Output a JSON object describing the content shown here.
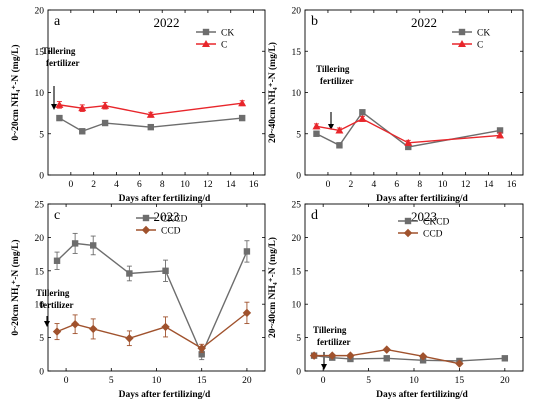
{
  "chart_data": [
    {
      "type": "line",
      "panel": "a",
      "title": "2022",
      "xlabel": "Days after fertilizing/d",
      "ylabel": "0~20cm NH₄⁺-N (mg/L)",
      "ylim": [
        0,
        20
      ],
      "yticks": [
        0,
        5,
        10,
        15,
        20
      ],
      "xlim": [
        -2,
        17
      ],
      "xticks": [
        0,
        2,
        4,
        6,
        8,
        10,
        12,
        14,
        16
      ],
      "annotation": "Tillering fertilizer",
      "legend_position": "top-right",
      "series": [
        {
          "name": "CK",
          "color": "#6d6d6d",
          "marker": "square",
          "x": [
            -1,
            1,
            3,
            7,
            15
          ],
          "y": [
            6.9,
            5.3,
            6.3,
            5.8,
            6.9
          ]
        },
        {
          "name": "C",
          "color": "#e8262b",
          "marker": "triangle",
          "x": [
            -1,
            1,
            3,
            7,
            15
          ],
          "y": [
            8.5,
            8.1,
            8.4,
            7.3,
            8.7
          ],
          "err": [
            0.4,
            0.4,
            0.4,
            0.3,
            0.3
          ]
        }
      ]
    },
    {
      "type": "line",
      "panel": "b",
      "title": "2022",
      "xlabel": "Days after fertilizing/d",
      "ylabel": "20~40cm NH₄⁺-N (mg/L)",
      "ylim": [
        0,
        20
      ],
      "yticks": [
        0,
        5,
        10,
        15,
        20
      ],
      "xlim": [
        -2,
        17
      ],
      "xticks": [
        0,
        2,
        4,
        6,
        8,
        10,
        12,
        14,
        16
      ],
      "annotation": "Tillering fertilizer",
      "legend_position": "top-right",
      "series": [
        {
          "name": "CK",
          "color": "#6d6d6d",
          "marker": "square",
          "x": [
            -1,
            1,
            3,
            7,
            15
          ],
          "y": [
            5.0,
            3.6,
            7.6,
            3.4,
            5.4
          ]
        },
        {
          "name": "C",
          "color": "#e8262b",
          "marker": "triangle",
          "x": [
            -1,
            1,
            3,
            7,
            15
          ],
          "y": [
            5.9,
            5.4,
            6.8,
            3.9,
            4.8
          ],
          "err": [
            0.3,
            0.3,
            0.3,
            0.3,
            0.3
          ]
        }
      ]
    },
    {
      "type": "line",
      "panel": "c",
      "title": "2023",
      "xlabel": "Days after fertilizing/d",
      "ylabel": "0~20cm NH₄⁺-N (mg/L)",
      "ylim": [
        0,
        25
      ],
      "yticks": [
        0,
        5,
        10,
        15,
        20,
        25
      ],
      "xlim": [
        -2,
        22
      ],
      "xticks": [
        0,
        5,
        10,
        15,
        20
      ],
      "annotation": "Tillering fertilizer",
      "legend_position": "top-center",
      "series": [
        {
          "name": "CKCD",
          "color": "#6d6d6d",
          "marker": "square",
          "x": [
            -1,
            1,
            3,
            7,
            11,
            15,
            20
          ],
          "y": [
            16.5,
            19.1,
            18.8,
            14.6,
            15.0,
            2.5,
            17.9
          ],
          "err": [
            1.3,
            1.5,
            1.4,
            1.1,
            1.6,
            0.8,
            1.6
          ]
        },
        {
          "name": "CCD",
          "color": "#a0522d",
          "marker": "diamond",
          "x": [
            -1,
            1,
            3,
            7,
            11,
            15,
            20
          ],
          "y": [
            5.9,
            7.0,
            6.3,
            4.9,
            6.6,
            3.4,
            8.7
          ],
          "err": [
            1.2,
            1.4,
            1.5,
            1.1,
            1.5,
            0.6,
            1.6
          ]
        }
      ]
    },
    {
      "type": "line",
      "panel": "d",
      "title": "2023",
      "xlabel": "Days after fertilizing/d",
      "ylabel": "20~40cm NH₄⁺-N (mg/L)",
      "ylim": [
        0,
        25
      ],
      "yticks": [
        0,
        5,
        10,
        15,
        20,
        25
      ],
      "xlim": [
        -2,
        22
      ],
      "xticks": [
        0,
        5,
        10,
        15,
        20
      ],
      "annotation": "Tillering fertilizer",
      "legend_position": "top-center",
      "series": [
        {
          "name": "CKCD",
          "color": "#6d6d6d",
          "marker": "square",
          "x": [
            -1,
            1,
            3,
            7,
            11,
            15,
            20
          ],
          "y": [
            2.3,
            2.0,
            1.8,
            1.9,
            1.6,
            1.5,
            1.9
          ]
        },
        {
          "name": "CCD",
          "color": "#a0522d",
          "marker": "diamond",
          "x": [
            -1,
            1,
            3,
            7,
            11,
            15,
            20
          ],
          "y": [
            2.3,
            2.3,
            2.3,
            3.2,
            2.2,
            1.1,
            null
          ]
        }
      ]
    }
  ]
}
